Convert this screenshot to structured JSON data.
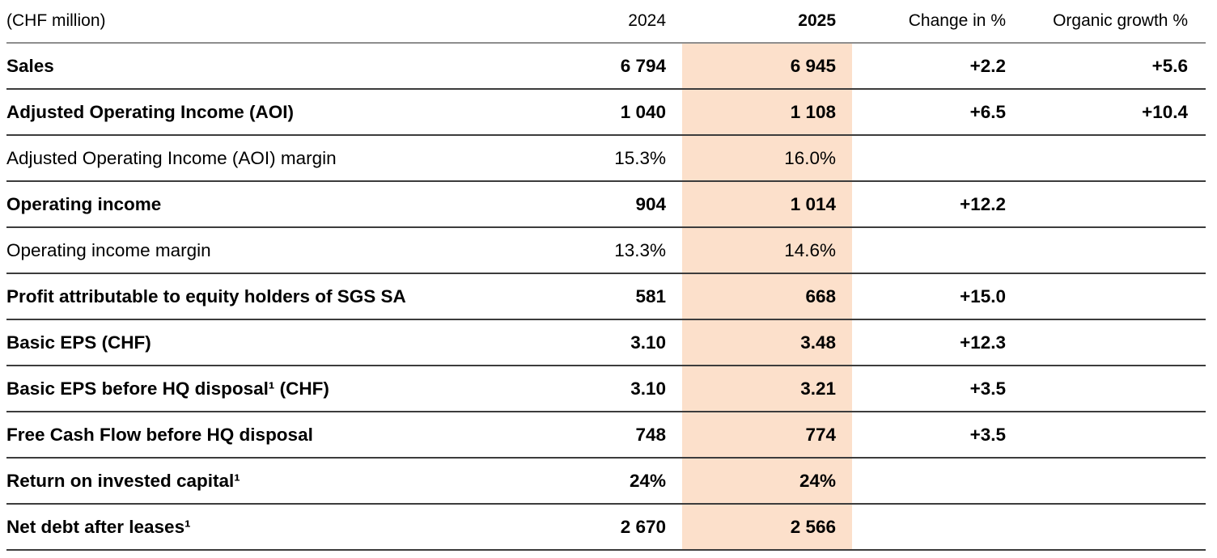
{
  "table": {
    "highlight_color": "#fce0cb",
    "columns": [
      {
        "key": "label",
        "label": "(CHF million)",
        "align": "left",
        "bold": false
      },
      {
        "key": "y2024",
        "label": "2024",
        "align": "right",
        "bold": false
      },
      {
        "key": "y2025",
        "label": "2025",
        "align": "right",
        "bold": true,
        "highlight": true
      },
      {
        "key": "change",
        "label": "Change in %",
        "align": "right",
        "bold": false
      },
      {
        "key": "organic",
        "label": "Organic growth %",
        "align": "right",
        "bold": false
      }
    ],
    "rows": [
      {
        "label": "Sales",
        "bold": true,
        "y2024": "6 794",
        "y2025": "6 945",
        "change": "+2.2",
        "organic": "+5.6"
      },
      {
        "label": "Adjusted Operating Income (AOI)",
        "bold": true,
        "y2024": "1 040",
        "y2025": "1 108",
        "change": "+6.5",
        "organic": "+10.4"
      },
      {
        "label": "Adjusted Operating Income (AOI) margin",
        "bold": false,
        "y2024": "15.3%",
        "y2025": "16.0%",
        "change": "",
        "organic": ""
      },
      {
        "label": "Operating income",
        "bold": true,
        "y2024": "904",
        "y2025": "1 014",
        "change": "+12.2",
        "organic": ""
      },
      {
        "label": "Operating income margin",
        "bold": false,
        "y2024": "13.3%",
        "y2025": "14.6%",
        "change": "",
        "organic": ""
      },
      {
        "label": "Profit attributable to equity holders of SGS SA",
        "bold": true,
        "y2024": "581",
        "y2025": "668",
        "change": "+15.0",
        "organic": ""
      },
      {
        "label": "Basic EPS (CHF)",
        "bold": true,
        "y2024": "3.10",
        "y2025": "3.48",
        "change": "+12.3",
        "organic": ""
      },
      {
        "label": "Basic EPS before HQ disposal¹ (CHF)",
        "bold": true,
        "y2024": "3.10",
        "y2025": "3.21",
        "change": "+3.5",
        "organic": ""
      },
      {
        "label": "Free Cash Flow before HQ disposal",
        "bold": true,
        "y2024": "748",
        "y2025": "774",
        "change": "+3.5",
        "organic": ""
      },
      {
        "label": "Return on invested capital¹",
        "bold": true,
        "y2024": "24%",
        "y2025": "24%",
        "change": "",
        "organic": ""
      },
      {
        "label": "Net debt after leases¹",
        "bold": true,
        "y2024": "2 670",
        "y2025": "2 566",
        "change": "",
        "organic": ""
      }
    ]
  }
}
